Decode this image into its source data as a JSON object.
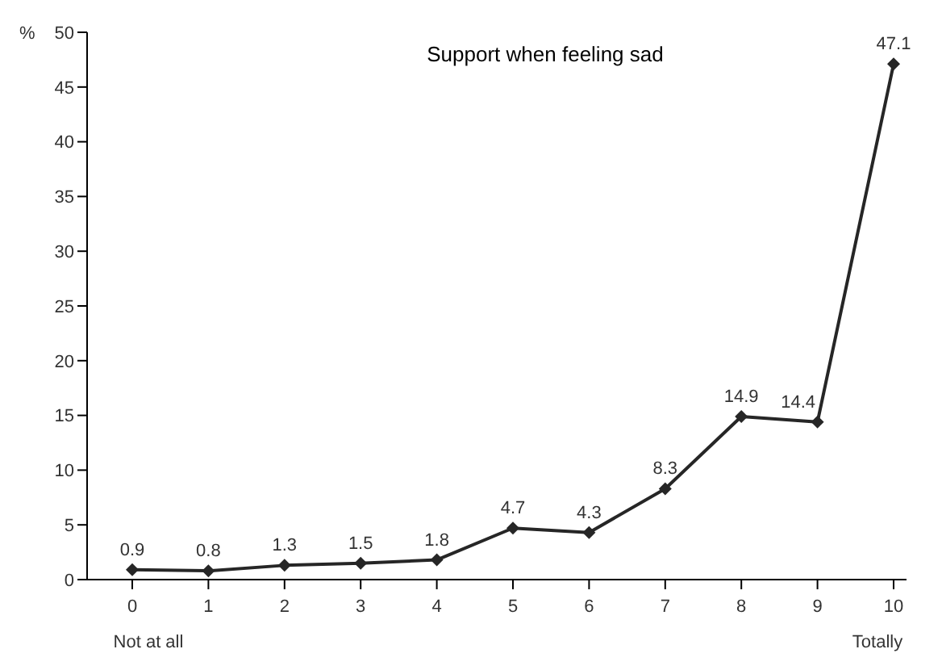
{
  "chart_data": {
    "type": "line",
    "title": "Support when feeling sad",
    "ylabel": "%",
    "categories": [
      "0\nNot at all",
      "1",
      "2",
      "3",
      "4",
      "5",
      "6",
      "7",
      "8",
      "9",
      "10\nTotally"
    ],
    "series": [
      {
        "color": "#262626",
        "values": [
          0.9,
          0.8,
          1.3,
          1.5,
          1.8,
          4.7,
          4.3,
          8.3,
          14.9,
          14.4,
          47.1
        ]
      }
    ],
    "ylim": [
      0,
      50
    ],
    "yticks": [
      0,
      5,
      10,
      15,
      20,
      25,
      30,
      35,
      40,
      45,
      50
    ],
    "grid": false,
    "legend": false,
    "marker": "diamond",
    "line_style": "solid",
    "data_labels": true
  }
}
